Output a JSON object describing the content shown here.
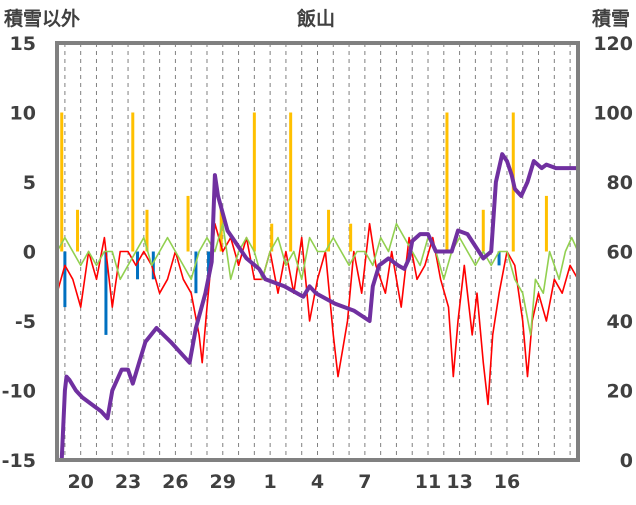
{
  "chart_data": {
    "type": "line",
    "title": "飯山",
    "ylabel_left": "積雪以外",
    "ylabel_right": "積雪",
    "y_left_range": [
      -15,
      15
    ],
    "y_right_range": [
      0,
      120
    ],
    "y_left_ticks": [
      15,
      10,
      5,
      0,
      -5,
      -10,
      -15
    ],
    "y_right_ticks": [
      120,
      100,
      80,
      60,
      40,
      20,
      0
    ],
    "x_tick_labels": [
      "20",
      "23",
      "26",
      "29",
      "1",
      "4",
      "7",
      "11",
      "13",
      "16"
    ],
    "x_domain_days": 33,
    "x_tick_day_offsets": [
      1.5,
      4.5,
      7.5,
      10.5,
      13.5,
      16.5,
      19.5,
      23.5,
      25.5,
      28.5
    ],
    "grid_vertical": true,
    "colors": {
      "snow_depth": "#7030a0",
      "temperature_red": "#ff0000",
      "temperature_green": "#92d050",
      "precip_orange": "#ffc000",
      "blue_bars": "#0070c0",
      "axis_frame": "#808080"
    },
    "series": [
      {
        "axis": "right",
        "color": "#7030a0",
        "points": [
          [
            0.0,
            0
          ],
          [
            0.3,
            0
          ],
          [
            0.4,
            10
          ],
          [
            0.5,
            20
          ],
          [
            0.6,
            24
          ],
          [
            0.8,
            23
          ],
          [
            1.2,
            20
          ],
          [
            1.6,
            18
          ],
          [
            2.2,
            16
          ],
          [
            2.8,
            14
          ],
          [
            3.2,
            12
          ],
          [
            3.5,
            20
          ],
          [
            4.1,
            26
          ],
          [
            4.5,
            26
          ],
          [
            4.8,
            22
          ],
          [
            5.2,
            28
          ],
          [
            5.6,
            34
          ],
          [
            6.3,
            38
          ],
          [
            7.2,
            34
          ],
          [
            8.4,
            28
          ],
          [
            8.8,
            38
          ],
          [
            9.4,
            48
          ],
          [
            9.8,
            57
          ],
          [
            10.0,
            82
          ],
          [
            10.2,
            76
          ],
          [
            10.8,
            66
          ],
          [
            11.4,
            62
          ],
          [
            12.0,
            58
          ],
          [
            12.8,
            55
          ],
          [
            13.2,
            52
          ],
          [
            14.4,
            50
          ],
          [
            15.6,
            47
          ],
          [
            16.0,
            50
          ],
          [
            16.4,
            48
          ],
          [
            17.6,
            45
          ],
          [
            18.8,
            43
          ],
          [
            19.8,
            40
          ],
          [
            20.0,
            50
          ],
          [
            20.4,
            56
          ],
          [
            21.0,
            58
          ],
          [
            21.6,
            56
          ],
          [
            22.0,
            55
          ],
          [
            22.3,
            58
          ],
          [
            22.5,
            63
          ],
          [
            23.0,
            65
          ],
          [
            23.5,
            65
          ],
          [
            24.0,
            60
          ],
          [
            25.0,
            60
          ],
          [
            25.4,
            66
          ],
          [
            26.0,
            65
          ],
          [
            27.0,
            58
          ],
          [
            27.5,
            60
          ],
          [
            27.8,
            80
          ],
          [
            28.2,
            88
          ],
          [
            28.5,
            86
          ],
          [
            28.8,
            82
          ],
          [
            29.0,
            78
          ],
          [
            29.4,
            76
          ],
          [
            29.8,
            80
          ],
          [
            30.2,
            86
          ],
          [
            30.7,
            84
          ],
          [
            31.0,
            85
          ],
          [
            31.6,
            84
          ],
          [
            32.2,
            84
          ],
          [
            33.0,
            84
          ]
        ]
      },
      {
        "axis": "left",
        "color": "#ff0000",
        "points": [
          [
            0.0,
            -3
          ],
          [
            0.5,
            -1
          ],
          [
            1.0,
            -2
          ],
          [
            1.5,
            -4
          ],
          [
            2.0,
            0
          ],
          [
            2.5,
            -2
          ],
          [
            3.0,
            1
          ],
          [
            3.5,
            -4
          ],
          [
            4.0,
            0
          ],
          [
            4.5,
            0
          ],
          [
            5.0,
            -1
          ],
          [
            5.5,
            0
          ],
          [
            6.0,
            -1
          ],
          [
            6.5,
            -3
          ],
          [
            7.0,
            -2
          ],
          [
            7.5,
            0
          ],
          [
            8.0,
            -2
          ],
          [
            8.5,
            -3
          ],
          [
            9.0,
            -6
          ],
          [
            9.2,
            -8
          ],
          [
            9.5,
            -4
          ],
          [
            10.0,
            2
          ],
          [
            10.5,
            0
          ],
          [
            11.0,
            1
          ],
          [
            11.5,
            -1
          ],
          [
            12.0,
            1
          ],
          [
            12.5,
            -2
          ],
          [
            13.0,
            -2
          ],
          [
            13.5,
            0
          ],
          [
            14.0,
            -3
          ],
          [
            14.5,
            0
          ],
          [
            15.0,
            -3
          ],
          [
            15.5,
            1
          ],
          [
            16.0,
            -5
          ],
          [
            16.5,
            -2
          ],
          [
            17.0,
            0
          ],
          [
            17.5,
            -6
          ],
          [
            17.8,
            -9
          ],
          [
            18.1,
            -7
          ],
          [
            18.4,
            -5
          ],
          [
            18.8,
            0
          ],
          [
            19.3,
            -3
          ],
          [
            19.8,
            2
          ],
          [
            20.2,
            -1
          ],
          [
            20.8,
            -3
          ],
          [
            21.2,
            0
          ],
          [
            21.8,
            -4
          ],
          [
            22.3,
            1
          ],
          [
            22.8,
            -2
          ],
          [
            23.3,
            -1
          ],
          [
            23.8,
            1
          ],
          [
            24.3,
            -2
          ],
          [
            24.8,
            -4
          ],
          [
            25.1,
            -9
          ],
          [
            25.4,
            -5
          ],
          [
            25.8,
            -1
          ],
          [
            26.3,
            -6
          ],
          [
            26.6,
            -3
          ],
          [
            27.0,
            -8
          ],
          [
            27.3,
            -11
          ],
          [
            27.6,
            -6
          ],
          [
            28.0,
            -3
          ],
          [
            28.5,
            0
          ],
          [
            29.0,
            -1
          ],
          [
            29.5,
            -5
          ],
          [
            29.8,
            -9
          ],
          [
            30.1,
            -5
          ],
          [
            30.5,
            -3
          ],
          [
            31.0,
            -5
          ],
          [
            31.5,
            -2
          ],
          [
            32.0,
            -3
          ],
          [
            32.5,
            -1
          ],
          [
            33.0,
            -2
          ]
        ]
      },
      {
        "axis": "left",
        "color": "#92d050",
        "points": [
          [
            0.0,
            0
          ],
          [
            0.5,
            1
          ],
          [
            1.0,
            0
          ],
          [
            1.5,
            -1
          ],
          [
            2.0,
            0
          ],
          [
            2.5,
            -1
          ],
          [
            3.0,
            0
          ],
          [
            3.5,
            0
          ],
          [
            4.0,
            -2
          ],
          [
            4.5,
            -1
          ],
          [
            5.0,
            0
          ],
          [
            5.5,
            1
          ],
          [
            6.0,
            -1
          ],
          [
            6.5,
            0
          ],
          [
            7.0,
            1
          ],
          [
            7.5,
            0
          ],
          [
            8.0,
            -1
          ],
          [
            8.5,
            -2
          ],
          [
            9.0,
            0
          ],
          [
            9.5,
            1
          ],
          [
            10.0,
            0
          ],
          [
            10.5,
            2
          ],
          [
            11.0,
            -2
          ],
          [
            11.5,
            0
          ],
          [
            12.0,
            1
          ],
          [
            12.5,
            0
          ],
          [
            13.0,
            -2
          ],
          [
            13.5,
            0
          ],
          [
            14.0,
            1
          ],
          [
            14.5,
            -1
          ],
          [
            15.0,
            0
          ],
          [
            15.5,
            -2
          ],
          [
            16.0,
            1
          ],
          [
            16.5,
            0
          ],
          [
            17.0,
            0
          ],
          [
            17.5,
            1
          ],
          [
            18.0,
            0
          ],
          [
            18.5,
            -1
          ],
          [
            19.0,
            0
          ],
          [
            19.5,
            0
          ],
          [
            20.0,
            -1
          ],
          [
            20.5,
            1
          ],
          [
            21.0,
            0
          ],
          [
            21.5,
            2
          ],
          [
            22.0,
            1
          ],
          [
            22.5,
            0
          ],
          [
            23.0,
            -1
          ],
          [
            23.5,
            1
          ],
          [
            24.0,
            0
          ],
          [
            24.5,
            -2
          ],
          [
            25.0,
            0
          ],
          [
            25.5,
            1
          ],
          [
            26.0,
            0
          ],
          [
            26.5,
            -1
          ],
          [
            27.0,
            0
          ],
          [
            27.5,
            -1
          ],
          [
            28.0,
            0
          ],
          [
            28.5,
            0
          ],
          [
            29.0,
            -2
          ],
          [
            29.5,
            -3
          ],
          [
            30.0,
            -6
          ],
          [
            30.3,
            -2
          ],
          [
            30.8,
            -3
          ],
          [
            31.2,
            0
          ],
          [
            31.8,
            -2
          ],
          [
            32.2,
            0
          ],
          [
            32.6,
            1
          ],
          [
            33.0,
            0
          ]
        ]
      }
    ],
    "bars": [
      {
        "color": "#ffc000",
        "values": [
          [
            0.3,
            10
          ],
          [
            1.3,
            3
          ],
          [
            4.8,
            10
          ],
          [
            5.7,
            3
          ],
          [
            8.3,
            4
          ],
          [
            10.4,
            3
          ],
          [
            12.5,
            10
          ],
          [
            13.6,
            2
          ],
          [
            14.8,
            10
          ],
          [
            17.2,
            3
          ],
          [
            18.6,
            2
          ],
          [
            24.7,
            10
          ],
          [
            27.0,
            3
          ],
          [
            28.9,
            10
          ],
          [
            31.0,
            4
          ]
        ]
      },
      {
        "color": "#0070c0",
        "values": [
          [
            0.5,
            -4
          ],
          [
            3.1,
            -6
          ],
          [
            5.1,
            -2
          ],
          [
            6.1,
            -2
          ],
          [
            8.8,
            -3
          ],
          [
            9.6,
            -2
          ],
          [
            28.0,
            -1
          ]
        ]
      }
    ]
  }
}
